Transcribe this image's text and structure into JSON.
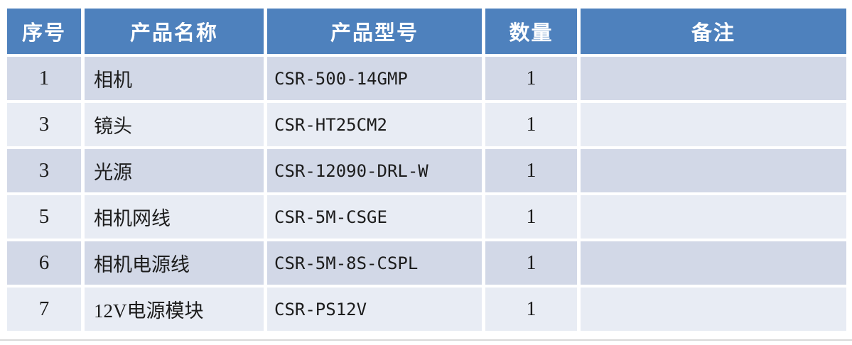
{
  "table": {
    "columns": [
      {
        "key": "index",
        "label": "序号"
      },
      {
        "key": "name",
        "label": "产品名称"
      },
      {
        "key": "model",
        "label": "产品型号"
      },
      {
        "key": "qty",
        "label": "数量"
      },
      {
        "key": "remark",
        "label": "备注"
      }
    ],
    "rows": [
      {
        "index": "1",
        "name": "相机",
        "model": "CSR-500-14GMP",
        "qty": "1",
        "remark": ""
      },
      {
        "index": "3",
        "name": "镜头",
        "model": "CSR-HT25CM2",
        "qty": "1",
        "remark": ""
      },
      {
        "index": "3",
        "name": "光源",
        "model": "CSR-12090-DRL-W",
        "qty": "1",
        "remark": ""
      },
      {
        "index": "5",
        "name": "相机网线",
        "model": "CSR-5M-CSGE",
        "qty": "1",
        "remark": ""
      },
      {
        "index": "6",
        "name": "相机电源线",
        "model": "CSR-5M-8S-CSPL",
        "qty": "1",
        "remark": ""
      },
      {
        "index": "7",
        "name": "12V电源模块",
        "model": "CSR-PS12V",
        "qty": "1",
        "remark": ""
      }
    ]
  },
  "colors": {
    "header_bg": "#4e81bd",
    "header_text": "#ffffff",
    "row_band_dark": "#d2d8e7",
    "row_band_light": "#e8ecf4",
    "body_text": "#1c1c1c",
    "gap": "#ffffff",
    "bottom_rule": "#d9d9d9"
  }
}
